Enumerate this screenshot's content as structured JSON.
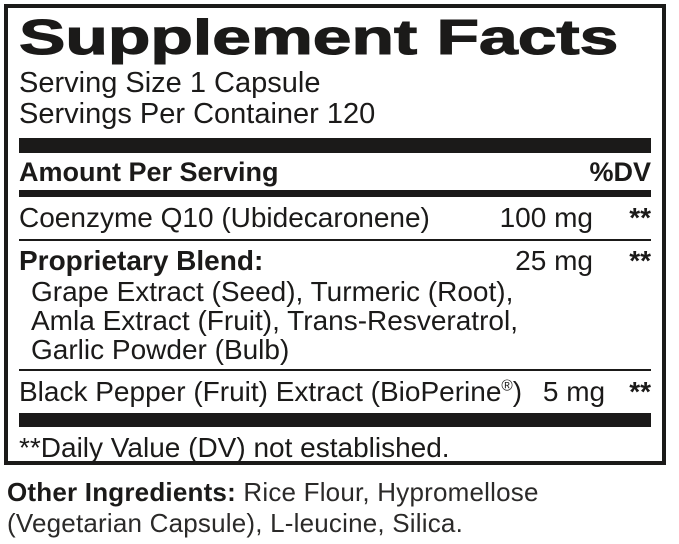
{
  "panel": {
    "title": "Supplement Facts",
    "serving_size": "Serving Size 1 Capsule",
    "servings_per_container": "Servings Per Container 120",
    "columns": {
      "amount_header": "Amount Per Serving",
      "dv_header": "%DV"
    },
    "rows": [
      {
        "name": "Coenzyme Q10 (Ubidecaronene)",
        "amount": "100 mg",
        "dv": "**"
      },
      {
        "name": "Proprietary Blend:",
        "amount": "25 mg",
        "dv": "**",
        "components": [
          "Grape Extract (Seed), Turmeric (Root),",
          "Amla Extract (Fruit), Trans-Resveratrol,",
          "Garlic Powder (Bulb)"
        ]
      },
      {
        "name_pre": "Black Pepper (Fruit) Extract (BioPerine",
        "name_sup": "®",
        "name_post": ")",
        "amount": "5 mg",
        "dv": "**"
      }
    ],
    "footnote": "**Daily Value (DV) not established.",
    "ink_color": "#1b1a19"
  },
  "other_ingredients": {
    "label": "Other Ingredients:",
    "text": " Rice Flour, Hypromellose (Vegetarian Capsule), L-leucine, Silica."
  }
}
